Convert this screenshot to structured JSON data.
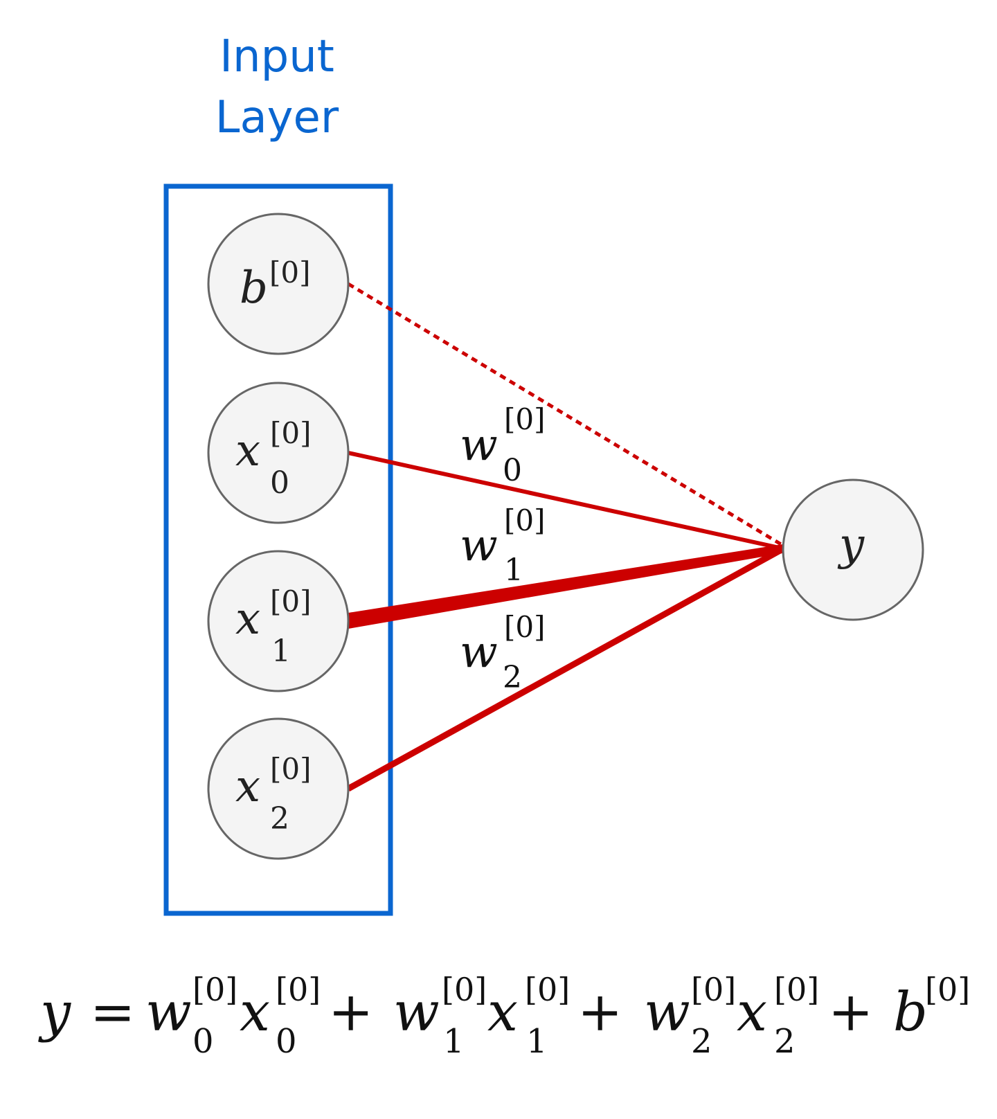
{
  "layer_title": {
    "line1": "Input",
    "line2": "Layer",
    "color": "#0a66d0"
  },
  "nodes": {
    "bias": {
      "base": "b",
      "sup": "[0]"
    },
    "x0": {
      "base": "x",
      "sub": "0",
      "sup": "[0]"
    },
    "x1": {
      "base": "x",
      "sub": "1",
      "sup": "[0]"
    },
    "x2": {
      "base": "x",
      "sub": "2",
      "sup": "[0]"
    },
    "output": {
      "base": "y"
    }
  },
  "weights": {
    "w0": {
      "base": "w",
      "sub": "0",
      "sup": "[0]"
    },
    "w1": {
      "base": "w",
      "sub": "1",
      "sup": "[0]"
    },
    "w2": {
      "base": "w",
      "sub": "2",
      "sup": "[0]"
    }
  },
  "equation": {
    "lhs": "y",
    "equals": "=",
    "plus": "+",
    "sup": "[0]",
    "w": "w",
    "x": "x",
    "b": "b",
    "sub0": "0",
    "sub1": "1",
    "sub2": "2"
  },
  "colors": {
    "connection": "#cc0000",
    "node_fill": "#f4f4f4",
    "node_stroke": "#666666",
    "layer_box": "#0a66d0",
    "text": "#111111"
  }
}
